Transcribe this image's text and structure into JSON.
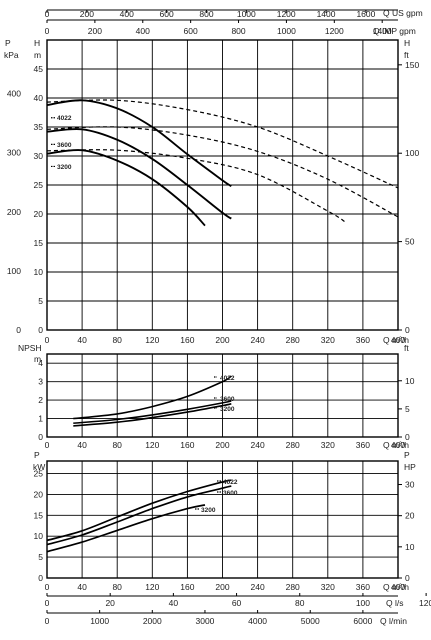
{
  "chart_data": [
    {
      "panel": "head",
      "type": "line",
      "x_unit": "Q m³/h",
      "xlim": [
        0,
        400
      ],
      "x_ticks": [
        0,
        40,
        80,
        120,
        160,
        200,
        240,
        280,
        320,
        360,
        400
      ],
      "top_axis_1": {
        "label": "Q US gpm",
        "ticks": [
          0,
          200,
          400,
          600,
          800,
          1000,
          1200,
          1400,
          1600
        ]
      },
      "top_axis_2": {
        "label": "Q IMP gpm",
        "ticks": [
          0,
          200,
          400,
          600,
          800,
          1000,
          1200,
          1400
        ]
      },
      "left_axis_1": {
        "label_top": "P",
        "label_bottom": "kPa",
        "ticks": [
          0,
          100,
          200,
          300,
          400
        ]
      },
      "left_axis_2": {
        "label_top": "H",
        "label_bottom": "m",
        "ylim": [
          0,
          50
        ],
        "ticks": [
          0,
          5,
          10,
          15,
          20,
          25,
          30,
          35,
          40,
          45
        ]
      },
      "right_axis": {
        "label_top": "H",
        "label_bottom": "ft",
        "ticks": [
          0,
          50,
          100,
          150
        ]
      },
      "grid": true,
      "series": [
        {
          "name": "4022",
          "style": "solid",
          "x": [
            0,
            40,
            80,
            120,
            160,
            200,
            210
          ],
          "y": [
            38.8,
            39.6,
            38.2,
            35.0,
            30.3,
            25.8,
            24.8
          ]
        },
        {
          "name": "3600",
          "style": "solid",
          "x": [
            0,
            40,
            80,
            120,
            160,
            200,
            210
          ],
          "y": [
            34.2,
            34.6,
            32.8,
            29.5,
            25.0,
            20.2,
            19.2
          ]
        },
        {
          "name": "3200",
          "style": "solid",
          "x": [
            0,
            40,
            80,
            120,
            160,
            180
          ],
          "y": [
            30.4,
            31.0,
            29.2,
            26.0,
            21.2,
            18.0
          ]
        },
        {
          "name": "4022",
          "style": "dashed",
          "x": [
            0,
            80,
            160,
            240,
            320,
            400
          ],
          "y": [
            39.3,
            39.6,
            38.0,
            35.0,
            30.0,
            24.5
          ]
        },
        {
          "name": "3600",
          "style": "dashed",
          "x": [
            0,
            80,
            160,
            240,
            320,
            400
          ],
          "y": [
            34.6,
            35.0,
            33.6,
            30.8,
            26.0,
            19.5
          ]
        },
        {
          "name": "3200",
          "style": "dashed",
          "x": [
            0,
            80,
            160,
            240,
            320,
            340
          ],
          "y": [
            30.9,
            31.0,
            29.6,
            26.8,
            20.5,
            18.6
          ]
        }
      ]
    },
    {
      "panel": "npsh",
      "type": "line",
      "x_unit": "Q m³/h",
      "xlim": [
        0,
        400
      ],
      "x_ticks": [
        0,
        40,
        80,
        120,
        160,
        200,
        240,
        280,
        320,
        360,
        400
      ],
      "left_axis": {
        "label_top": "NPSH",
        "label_bottom": "m",
        "ylim": [
          0,
          4.5
        ],
        "ticks": [
          0,
          1,
          2,
          3,
          4
        ]
      },
      "right_axis": {
        "label_top": "ft",
        "ticks": [
          0,
          5,
          10
        ]
      },
      "grid": true,
      "series": [
        {
          "name": "4022",
          "x": [
            30,
            80,
            120,
            160,
            200,
            210
          ],
          "y": [
            1.0,
            1.25,
            1.65,
            2.2,
            3.0,
            3.3
          ]
        },
        {
          "name": "3600",
          "x": [
            30,
            80,
            120,
            160,
            200,
            210
          ],
          "y": [
            0.75,
            0.95,
            1.2,
            1.5,
            1.85,
            1.95
          ]
        },
        {
          "name": "3200",
          "x": [
            30,
            80,
            120,
            160,
            200,
            210
          ],
          "y": [
            0.6,
            0.8,
            1.05,
            1.35,
            1.7,
            1.8
          ]
        }
      ]
    },
    {
      "panel": "power",
      "type": "line",
      "x_unit": "Q m³/h",
      "xlim": [
        0,
        400
      ],
      "x_ticks": [
        0,
        40,
        80,
        120,
        160,
        200,
        240,
        280,
        320,
        360,
        400
      ],
      "bottom_axis_1": {
        "label": "Q l/s",
        "ticks": [
          0,
          20,
          40,
          60,
          80,
          100,
          120
        ]
      },
      "bottom_axis_2": {
        "label": "Q l/min",
        "ticks": [
          0,
          1000,
          2000,
          3000,
          4000,
          5000,
          6000
        ]
      },
      "left_axis": {
        "label_top": "P",
        "label_bottom": "kW",
        "ylim": [
          0,
          28
        ],
        "ticks": [
          0,
          5,
          10,
          15,
          20,
          25
        ]
      },
      "right_axis": {
        "label_top": "P",
        "label_bottom": "HP",
        "ticks": [
          0,
          10,
          20,
          30
        ]
      },
      "grid": true,
      "series": [
        {
          "name": "4022",
          "x": [
            0,
            40,
            80,
            120,
            160,
            200,
            210
          ],
          "y": [
            9.0,
            11.3,
            14.6,
            17.9,
            20.7,
            23.0,
            23.4
          ]
        },
        {
          "name": "3600",
          "x": [
            0,
            40,
            80,
            120,
            160,
            200,
            210
          ],
          "y": [
            8.0,
            10.3,
            13.4,
            16.6,
            19.4,
            21.5,
            22.0
          ]
        },
        {
          "name": "3200",
          "x": [
            0,
            40,
            80,
            120,
            160,
            180
          ],
          "y": [
            6.3,
            8.6,
            11.4,
            14.2,
            16.6,
            17.5
          ]
        }
      ]
    }
  ]
}
